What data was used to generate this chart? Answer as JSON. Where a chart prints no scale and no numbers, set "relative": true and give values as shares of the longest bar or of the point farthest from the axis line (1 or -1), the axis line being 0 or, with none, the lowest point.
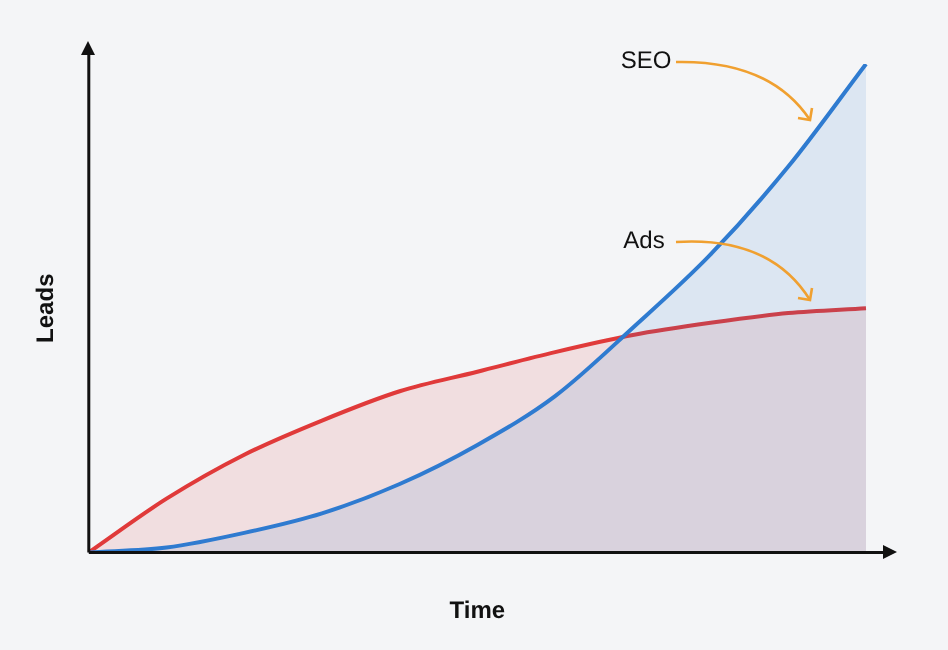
{
  "chart_data": {
    "type": "area",
    "relative": true,
    "xlabel": "Time",
    "ylabel": "Leads",
    "categories": [
      null,
      null,
      null,
      null,
      null,
      null,
      null,
      null,
      null,
      null,
      null
    ],
    "series": [
      {
        "name": "SEO",
        "color": "#2f7bd0",
        "values": [
          0,
          0.01,
          0.04,
          0.08,
          0.14,
          0.22,
          0.32,
          0.46,
          0.61,
          0.79,
          1.0
        ]
      },
      {
        "name": "Ads",
        "color": "#e03a3a",
        "values": [
          0,
          0.11,
          0.2,
          0.27,
          0.33,
          0.37,
          0.41,
          0.445,
          0.47,
          0.49,
          0.5
        ]
      }
    ],
    "legend": false
  }
}
